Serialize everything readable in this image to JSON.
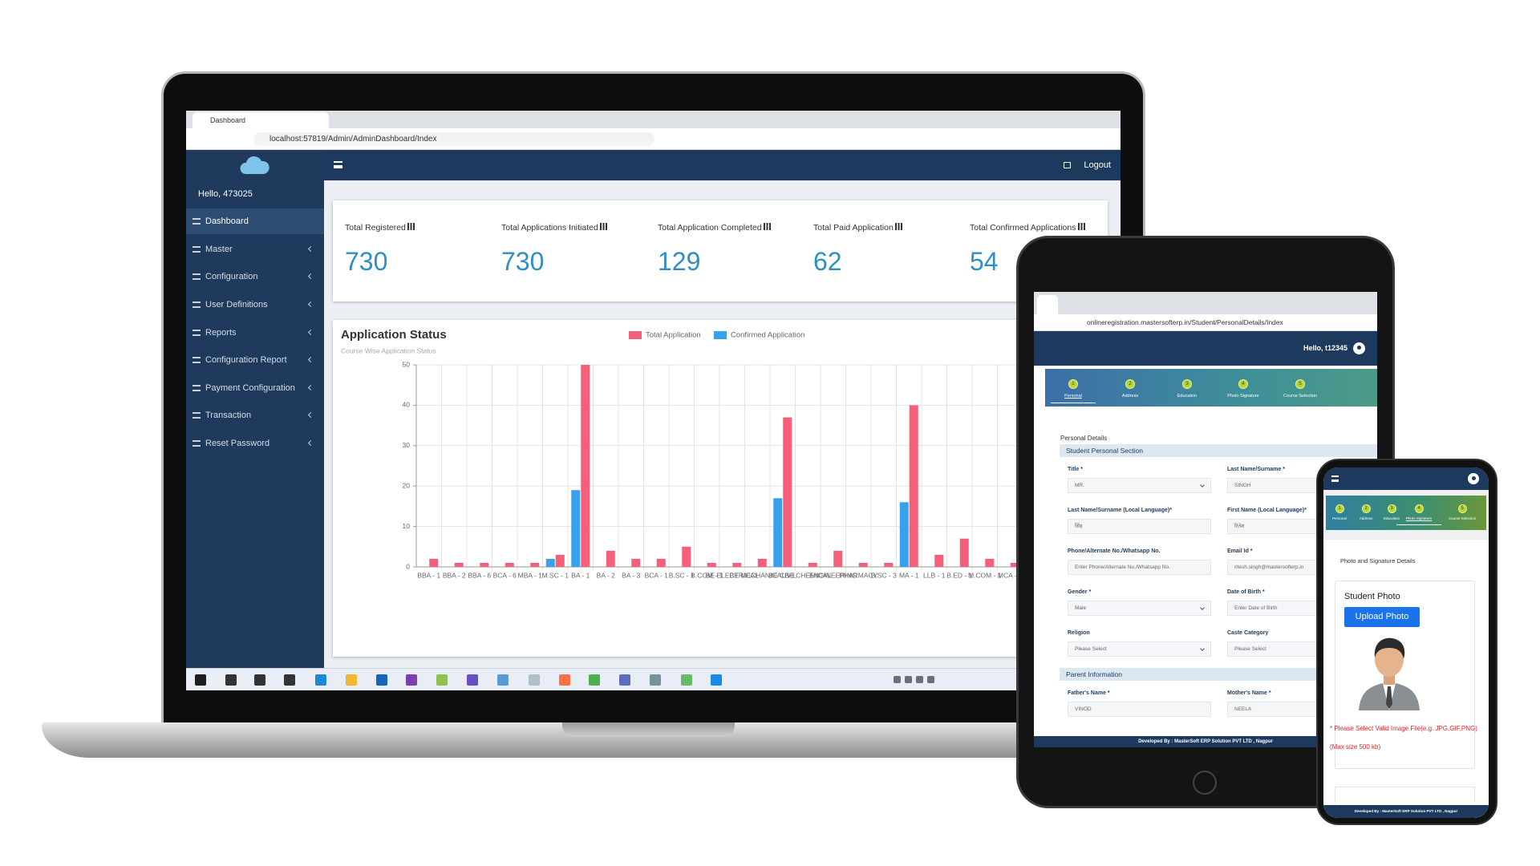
{
  "laptop": {
    "browser": {
      "tab_title": "Dashboard",
      "url": "localhost:57819/Admin/AdminDashboard/Index"
    },
    "sidebar": {
      "greeting": "Hello, 473025",
      "menu": [
        "Dashboard",
        "Master",
        "Configuration",
        "User Definitions",
        "Reports",
        "Configuration Report",
        "Payment Configuration",
        "Transaction",
        "Reset Password"
      ],
      "active": 0
    },
    "header": {
      "logout": "Logout"
    },
    "stats": [
      {
        "label": "Total Registered",
        "value": 730
      },
      {
        "label": "Total Applications Initiated",
        "value": 730
      },
      {
        "label": "Total Application Completed",
        "value": 129
      },
      {
        "label": "Total Paid Application",
        "value": 62
      },
      {
        "label": "Total Confirmed Applications",
        "value": 54
      }
    ]
  },
  "chart_data": {
    "type": "bar",
    "title": "Application Status",
    "subtitle": "Course Wise Application Status",
    "categories": [
      "BBA - 1",
      "BBA - 2",
      "BBA - 6",
      "BCA - 6",
      "MBA - 1",
      "M.SC - 1",
      "BA - 1",
      "BA - 2",
      "BA - 3",
      "BCA - 1",
      "B.SC - 1",
      "B.COM - 1",
      "BE ELECTRICAL",
      "BE MECHANICAL",
      "BE CIVIL",
      "BE CHEMICAL",
      "ENGINEERING",
      "PHARMACY",
      "B.SC - 3",
      "MA - 1",
      "LLB - 1",
      "B.ED - 1",
      "M.COM - 1",
      "MCA - 1"
    ],
    "series": [
      {
        "name": "Total Application",
        "color": "#f4607a",
        "values": [
          2,
          1,
          1,
          1,
          1,
          3,
          50,
          4,
          2,
          2,
          5,
          1,
          1,
          2,
          37,
          1,
          4,
          1,
          1,
          40,
          3,
          7,
          2,
          1
        ]
      },
      {
        "name": "Confirmed Application",
        "color": "#36a2eb",
        "values": [
          0,
          0,
          0,
          0,
          0,
          2,
          19,
          0,
          0,
          0,
          0,
          0,
          0,
          0,
          17,
          0,
          0,
          0,
          0,
          16,
          0,
          0,
          0,
          0
        ]
      }
    ],
    "ylim": [
      0,
      50
    ],
    "yticks": [
      0,
      10,
      20,
      30,
      40,
      50
    ],
    "grid": true
  },
  "registration_steps": [
    {
      "number": 1,
      "label": "Personal"
    },
    {
      "number": 2,
      "label": "Address"
    },
    {
      "number": 3,
      "label": "Education"
    },
    {
      "number": 4,
      "label": "Photo Signature"
    },
    {
      "number": 5,
      "label": "Course Selection"
    }
  ],
  "footer": "Developed By : MasterSoft ERP Solution PVT LTD , Nagpur",
  "tablet": {
    "url": "onlineregistration.mastersofterp.in/Student/PersonalDetails/Index",
    "greeting": "Hello, t12345",
    "active_step": 0,
    "page_title": "Personal Details",
    "sections": [
      {
        "title": "Student Personal Section",
        "fields": [
          {
            "label": "Title *",
            "value": "MR.",
            "select": true
          },
          {
            "label": "Last Name/Surname *",
            "value": "SINGH"
          },
          {
            "label": "Last Name/Surname (Local Language)*",
            "value": "सिंह"
          },
          {
            "label": "First Name (Local Language)*",
            "value": "रितेश"
          },
          {
            "label": "Phone/Alternate No./Whatsapp No.",
            "value": "Enter Phone/Alternate No./Whatsapp No."
          },
          {
            "label": "Email Id *",
            "value": "ritesh.singh@mastersofterp.in"
          },
          {
            "label": "Gender *",
            "value": "Male",
            "select": true
          },
          {
            "label": "Date of Birth *",
            "value": "Enter Date of Birth"
          },
          {
            "label": "Religion",
            "value": "Please Select",
            "select": true
          },
          {
            "label": "Caste Category",
            "value": "Please Select",
            "select": true
          }
        ]
      },
      {
        "title": "Parent Information",
        "fields": [
          {
            "label": "Father's Name *",
            "value": "VINOD"
          },
          {
            "label": "Mother's Name *",
            "value": "NEELA"
          }
        ]
      }
    ]
  },
  "phone": {
    "active_step": 3,
    "page_title": "Photo and Signature Details",
    "card_title": "Student Photo",
    "button": "Upload Photo",
    "note": "* Please Select Valid Image File(e.g. JPG,GIF,PNG) (Max size 500 kb)"
  }
}
